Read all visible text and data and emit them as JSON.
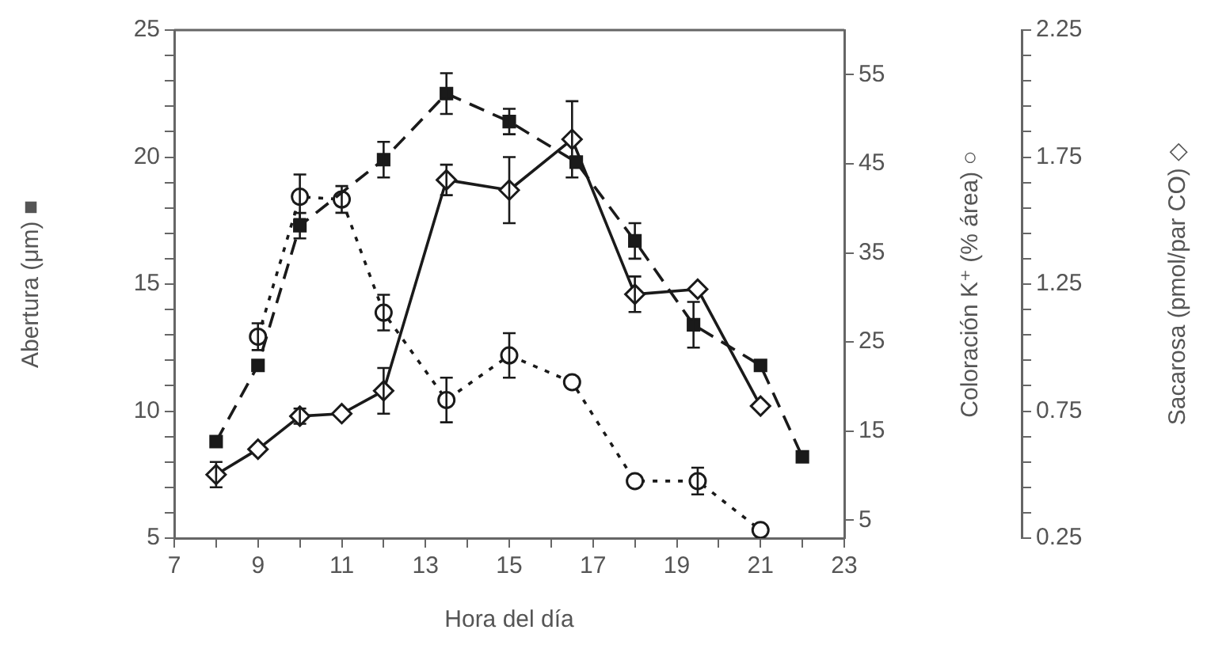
{
  "chart_data": {
    "type": "line",
    "xlabel": "Hora del día",
    "ylabel": "Abertura (μm) ■",
    "y2label": "Coloración K⁺ (% área) ○",
    "y3label": "Sacarosa (pmol/par CO) ◇",
    "xlim": [
      7,
      23
    ],
    "xticks": [
      7,
      {
        "value": 8,
        "label": null
      },
      9,
      {
        "value": 10,
        "label": null
      },
      11,
      {
        "value": 12,
        "label": null
      },
      13,
      {
        "value": 14,
        "label": null
      },
      15,
      {
        "value": 16,
        "label": null
      },
      17,
      {
        "value": 18,
        "label": null
      },
      19,
      {
        "value": 20,
        "label": null
      },
      21,
      {
        "value": 22,
        "label": null
      },
      23
    ],
    "ylim": [
      5,
      25
    ],
    "yticks": [
      5,
      {
        "value": 6,
        "label": null
      },
      {
        "value": 7,
        "label": null
      },
      {
        "value": 8,
        "label": null
      },
      {
        "value": 9,
        "label": null
      },
      10,
      {
        "value": 11,
        "label": null
      },
      {
        "value": 12,
        "label": null
      },
      {
        "value": 13,
        "label": null
      },
      {
        "value": 14,
        "label": null
      },
      15,
      {
        "value": 16,
        "label": null
      },
      {
        "value": 17,
        "label": null
      },
      {
        "value": 18,
        "label": null
      },
      {
        "value": 19,
        "label": null
      },
      20,
      {
        "value": 21,
        "label": null
      },
      {
        "value": 22,
        "label": null
      },
      {
        "value": 23,
        "label": null
      },
      {
        "value": 24,
        "label": null
      },
      25
    ],
    "y2lim": [
      3,
      60
    ],
    "y2ticks": [
      5,
      15,
      25,
      35,
      45,
      55
    ],
    "y3lim": [
      0.25,
      2.25
    ],
    "y3ticks": [
      0.25,
      {
        "value": 0.35,
        "label": null
      },
      {
        "value": 0.45,
        "label": null
      },
      {
        "value": 0.55,
        "label": null
      },
      {
        "value": 0.65,
        "label": null
      },
      0.75,
      {
        "value": 0.85,
        "label": null
      },
      {
        "value": 0.95,
        "label": null
      },
      {
        "value": 1.05,
        "label": null
      },
      {
        "value": 1.15,
        "label": null
      },
      1.25,
      {
        "value": 1.35,
        "label": null
      },
      {
        "value": 1.45,
        "label": null
      },
      {
        "value": 1.55,
        "label": null
      },
      {
        "value": 1.65,
        "label": null
      },
      1.75,
      {
        "value": 1.85,
        "label": null
      },
      {
        "value": 1.95,
        "label": null
      },
      {
        "value": 2.05,
        "label": null
      },
      {
        "value": 2.15,
        "label": null
      },
      2.25
    ],
    "series": [
      {
        "color": "#1a1a1a",
        "marker": "square",
        "line_style": "dashed",
        "axis": "y",
        "x": [
          8,
          9,
          10,
          12,
          13.5,
          15,
          16.6,
          18,
          19.4,
          21,
          22
        ],
        "values": [
          8.8,
          11.8,
          17.3,
          19.9,
          22.5,
          21.4,
          19.8,
          16.7,
          13.4,
          11.8,
          8.2
        ],
        "errors": [
          null,
          null,
          0.5,
          0.7,
          0.8,
          0.5,
          null,
          0.7,
          0.9,
          null,
          null
        ]
      },
      {
        "color": "#1a1a1a",
        "marker": "circle",
        "line_style": "dotted",
        "axis": "y2",
        "x": [
          9,
          10,
          11,
          12,
          13.5,
          15,
          16.5,
          18,
          19.5,
          21
        ],
        "values": [
          25.6,
          41.3,
          41,
          28.3,
          18.5,
          23.5,
          20.5,
          9.4,
          9.4,
          3.9
        ],
        "errors": [
          1.5,
          2.5,
          1.5,
          2,
          2.5,
          2.5,
          null,
          null,
          1.5,
          null
        ]
      },
      {
        "color": "#1a1a1a",
        "marker": "diamond",
        "line_style": "solid",
        "axis": "y3",
        "x": [
          8,
          9,
          10,
          11,
          12,
          13.5,
          15,
          16.5,
          18,
          19.5,
          21
        ],
        "values": [
          0.5,
          0.6,
          0.73,
          0.74,
          0.83,
          1.66,
          1.62,
          1.82,
          1.21,
          1.23,
          0.77
        ],
        "errors": [
          0.05,
          null,
          0.03,
          null,
          0.09,
          0.06,
          0.13,
          0.15,
          0.07,
          null,
          null
        ]
      }
    ]
  }
}
